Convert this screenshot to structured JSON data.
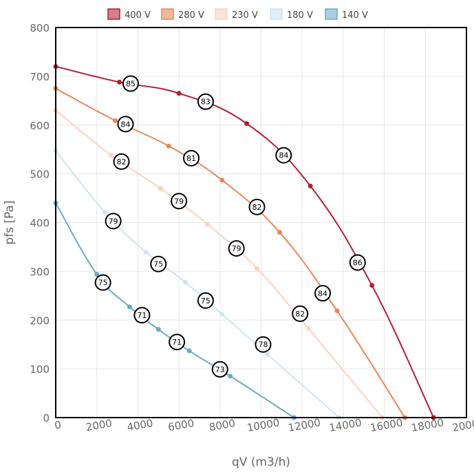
{
  "chart_data": {
    "type": "line",
    "xlabel": "qV (m3/h)",
    "ylabel": "pfs [Pa]",
    "xlim": [
      0,
      20000
    ],
    "ylim": [
      0,
      800
    ],
    "x_ticks": [
      "0",
      "2000",
      "4000",
      "6000",
      "8000",
      "10000",
      "12000",
      "14000",
      "16000",
      "18000",
      "20000"
    ],
    "y_ticks": [
      "0",
      "100",
      "200",
      "300",
      "400",
      "500",
      "600",
      "700",
      "800"
    ],
    "grid": true,
    "legend_position": "top",
    "series": [
      {
        "name": "400 V",
        "color": "#b01f33",
        "fill": "#d37e8c",
        "points": [
          [
            0,
            720
          ],
          [
            3100,
            688
          ],
          [
            6000,
            665
          ],
          [
            9300,
            603
          ],
          [
            12400,
            475
          ],
          [
            15400,
            271
          ],
          [
            18400,
            0
          ]
        ],
        "efficiency": [
          {
            "x": 3650,
            "y": 685,
            "label": "85"
          },
          {
            "x": 7300,
            "y": 648,
            "label": "83"
          },
          {
            "x": 11100,
            "y": 538,
            "label": "84"
          },
          {
            "x": 14700,
            "y": 318,
            "label": "86"
          }
        ]
      },
      {
        "name": "280 V",
        "color": "#e8875a",
        "fill": "#f2b89c",
        "points": [
          [
            0,
            675
          ],
          [
            2900,
            609
          ],
          [
            5500,
            557
          ],
          [
            8100,
            487
          ],
          [
            10900,
            380
          ],
          [
            13700,
            219
          ],
          [
            17000,
            0
          ]
        ],
        "efficiency": [
          {
            "x": 3400,
            "y": 602,
            "label": "84"
          },
          {
            "x": 6600,
            "y": 532,
            "label": "81"
          },
          {
            "x": 9800,
            "y": 432,
            "label": "82"
          },
          {
            "x": 13000,
            "y": 255,
            "label": "84"
          }
        ]
      },
      {
        "name": "230 V",
        "color": "#fad3bf",
        "fill": "#fbe3d7",
        "points": [
          [
            0,
            630
          ],
          [
            2700,
            538
          ],
          [
            5100,
            470
          ],
          [
            7400,
            396
          ],
          [
            9800,
            306
          ],
          [
            12300,
            183
          ],
          [
            15900,
            0
          ]
        ],
        "efficiency": [
          {
            "x": 3200,
            "y": 525,
            "label": "82"
          },
          {
            "x": 6000,
            "y": 444,
            "label": "79"
          },
          {
            "x": 8800,
            "y": 347,
            "label": "79"
          },
          {
            "x": 11900,
            "y": 213,
            "label": "82"
          }
        ]
      },
      {
        "name": "180 V",
        "color": "#cfe4f0",
        "fill": "#e1eef6",
        "points": [
          [
            0,
            547
          ],
          [
            2400,
            421
          ],
          [
            4400,
            339
          ],
          [
            6300,
            278
          ],
          [
            8100,
            212
          ],
          [
            10300,
            130
          ],
          [
            13800,
            0
          ]
        ],
        "efficiency": [
          {
            "x": 2800,
            "y": 403,
            "label": "79"
          },
          {
            "x": 5000,
            "y": 315,
            "label": "75"
          },
          {
            "x": 7300,
            "y": 240,
            "label": "75"
          },
          {
            "x": 10100,
            "y": 150,
            "label": "78"
          }
        ]
      },
      {
        "name": "140 V",
        "color": "#6aa9c8",
        "fill": "#a9cde0",
        "points": [
          [
            0,
            440
          ],
          [
            2000,
            294
          ],
          [
            3600,
            227
          ],
          [
            5000,
            181
          ],
          [
            6500,
            137
          ],
          [
            8500,
            85
          ],
          [
            11600,
            0
          ]
        ],
        "efficiency": [
          {
            "x": 2300,
            "y": 277,
            "label": "75"
          },
          {
            "x": 4200,
            "y": 210,
            "label": "71"
          },
          {
            "x": 5900,
            "y": 155,
            "label": "71"
          },
          {
            "x": 8000,
            "y": 99,
            "label": "73"
          }
        ]
      }
    ]
  }
}
